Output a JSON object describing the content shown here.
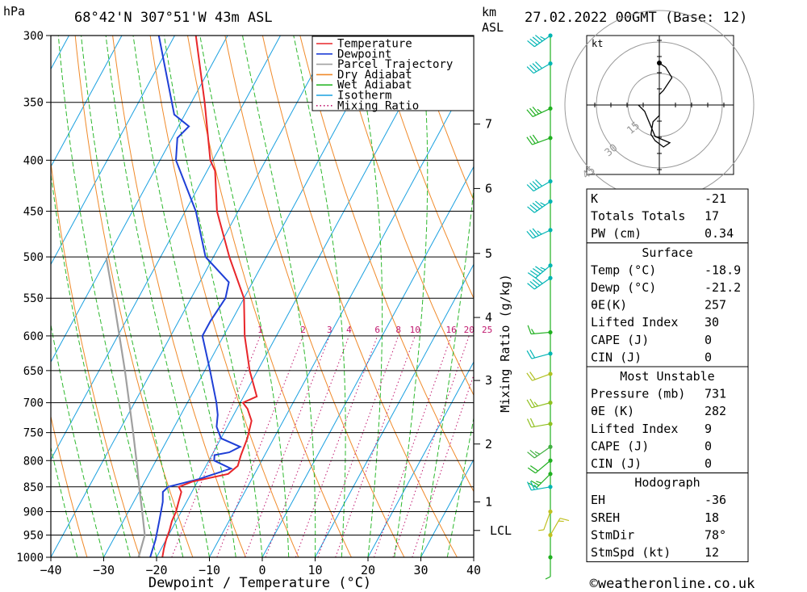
{
  "header": {
    "pressure_unit": "hPa",
    "location": "68°42'N  307°51'W  43m  ASL",
    "km_label": "km",
    "asl_label": "ASL",
    "datetime": "27.02.2022  00GMT  (Base: 12)"
  },
  "legend": [
    {
      "name": "Temperature",
      "color": "#e8262a",
      "style": "solid"
    },
    {
      "name": "Dewpoint",
      "color": "#1f3fd6",
      "style": "solid"
    },
    {
      "name": "Parcel Trajectory",
      "color": "#a0a0a0",
      "style": "solid"
    },
    {
      "name": "Dry Adiabat",
      "color": "#f08a2a",
      "style": "solid"
    },
    {
      "name": "Wet Adiabat",
      "color": "#2db82d",
      "style": "solid"
    },
    {
      "name": "Isotherm",
      "color": "#1aa0e0",
      "style": "solid"
    },
    {
      "name": "Mixing Ratio",
      "color": "#c0186e",
      "style": "dotted"
    }
  ],
  "chart_data": {
    "type": "skew-t",
    "xlabel": "Dewpoint / Temperature (°C)",
    "mixing_ratio_label": "Mixing Ratio (g/kg)",
    "pressure_levels": [
      300,
      350,
      400,
      450,
      500,
      550,
      600,
      650,
      700,
      750,
      800,
      850,
      900,
      950,
      1000
    ],
    "temperature_ticks": [
      -40,
      -30,
      -20,
      -10,
      0,
      10,
      20,
      30,
      40
    ],
    "km_ticks": [
      {
        "label": "7",
        "p": 368
      },
      {
        "label": "6",
        "p": 427
      },
      {
        "label": "5",
        "p": 496
      },
      {
        "label": "4",
        "p": 575
      },
      {
        "label": "3",
        "p": 665
      },
      {
        "label": "2",
        "p": 770
      },
      {
        "label": "1",
        "p": 880
      },
      {
        "label": "LCL",
        "p": 940
      }
    ],
    "mixing_ratio_values": [
      "1",
      "2",
      "3",
      "4",
      "6",
      "8",
      "10",
      "16",
      "20",
      "25"
    ],
    "temperature": [
      {
        "p": 1000,
        "t": -18.9
      },
      {
        "p": 980,
        "t": -19.5
      },
      {
        "p": 960,
        "t": -20
      },
      {
        "p": 940,
        "t": -20.3
      },
      {
        "p": 920,
        "t": -20.8
      },
      {
        "p": 900,
        "t": -21
      },
      {
        "p": 880,
        "t": -21.5
      },
      {
        "p": 860,
        "t": -22
      },
      {
        "p": 850,
        "t": -23
      },
      {
        "p": 840,
        "t": -21
      },
      {
        "p": 825,
        "t": -15
      },
      {
        "p": 810,
        "t": -14
      },
      {
        "p": 790,
        "t": -14.5
      },
      {
        "p": 760,
        "t": -15
      },
      {
        "p": 730,
        "t": -16
      },
      {
        "p": 710,
        "t": -18
      },
      {
        "p": 700,
        "t": -19.5
      },
      {
        "p": 690,
        "t": -17.5
      },
      {
        "p": 650,
        "t": -21.5
      },
      {
        "p": 600,
        "t": -26
      },
      {
        "p": 550,
        "t": -30
      },
      {
        "p": 500,
        "t": -37
      },
      {
        "p": 450,
        "t": -44
      },
      {
        "p": 410,
        "t": -48.5
      },
      {
        "p": 400,
        "t": -50.5
      },
      {
        "p": 350,
        "t": -57.5
      },
      {
        "p": 300,
        "t": -66
      }
    ],
    "dewpoint": [
      {
        "p": 1000,
        "t": -21.2
      },
      {
        "p": 960,
        "t": -22
      },
      {
        "p": 920,
        "t": -23.2
      },
      {
        "p": 880,
        "t": -24.5
      },
      {
        "p": 860,
        "t": -25.5
      },
      {
        "p": 850,
        "t": -25
      },
      {
        "p": 835,
        "t": -20
      },
      {
        "p": 815,
        "t": -15
      },
      {
        "p": 800,
        "t": -19
      },
      {
        "p": 790,
        "t": -19.5
      },
      {
        "p": 785,
        "t": -17
      },
      {
        "p": 775,
        "t": -15.5
      },
      {
        "p": 760,
        "t": -20
      },
      {
        "p": 740,
        "t": -22
      },
      {
        "p": 720,
        "t": -23
      },
      {
        "p": 700,
        "t": -24.5
      },
      {
        "p": 650,
        "t": -29
      },
      {
        "p": 600,
        "t": -34
      },
      {
        "p": 580,
        "t": -34
      },
      {
        "p": 550,
        "t": -33.5
      },
      {
        "p": 530,
        "t": -34.5
      },
      {
        "p": 500,
        "t": -41.5
      },
      {
        "p": 450,
        "t": -48
      },
      {
        "p": 400,
        "t": -57
      },
      {
        "p": 380,
        "t": -59
      },
      {
        "p": 370,
        "t": -58
      },
      {
        "p": 360,
        "t": -62
      },
      {
        "p": 300,
        "t": -73
      }
    ],
    "parcel": [
      {
        "p": 1000,
        "t": -23.4
      },
      {
        "p": 950,
        "t": -24.5
      },
      {
        "p": 900,
        "t": -27.4
      },
      {
        "p": 850,
        "t": -30.5
      },
      {
        "p": 800,
        "t": -33.7
      },
      {
        "p": 750,
        "t": -37.2
      },
      {
        "p": 700,
        "t": -41
      },
      {
        "p": 650,
        "t": -45.1
      },
      {
        "p": 600,
        "t": -49.7
      },
      {
        "p": 550,
        "t": -54.7
      },
      {
        "p": 500,
        "t": -60.3
      }
    ],
    "wind_profile": [
      {
        "p": 300,
        "dir": 235,
        "spd": 45,
        "color": "#00b4b4"
      },
      {
        "p": 320,
        "dir": 240,
        "spd": 40,
        "color": "#00b4b4"
      },
      {
        "p": 355,
        "dir": 245,
        "spd": 35,
        "color": "#20b020"
      },
      {
        "p": 380,
        "dir": 250,
        "spd": 30,
        "color": "#20b020"
      },
      {
        "p": 420,
        "dir": 240,
        "spd": 40,
        "color": "#00b4b4"
      },
      {
        "p": 440,
        "dir": 235,
        "spd": 45,
        "color": "#00b4b4"
      },
      {
        "p": 470,
        "dir": 245,
        "spd": 35,
        "color": "#00b4b4"
      },
      {
        "p": 510,
        "dir": 230,
        "spd": 45,
        "color": "#00b4b4"
      },
      {
        "p": 525,
        "dir": 235,
        "spd": 40,
        "color": "#00b4b4"
      },
      {
        "p": 595,
        "dir": 265,
        "spd": 15,
        "color": "#20b020"
      },
      {
        "p": 625,
        "dir": 255,
        "spd": 20,
        "color": "#00b4b4"
      },
      {
        "p": 655,
        "dir": 250,
        "spd": 20,
        "color": "#b0c020"
      },
      {
        "p": 700,
        "dir": 255,
        "spd": 25,
        "color": "#90c020"
      },
      {
        "p": 735,
        "dir": 260,
        "spd": 20,
        "color": "#90c020"
      },
      {
        "p": 775,
        "dir": 235,
        "spd": 25,
        "color": "#40b040"
      },
      {
        "p": 800,
        "dir": 230,
        "spd": 20,
        "color": "#20b020"
      },
      {
        "p": 825,
        "dir": 225,
        "spd": 25,
        "color": "#20b020"
      },
      {
        "p": 850,
        "dir": 260,
        "spd": 25,
        "color": "#00b4b4"
      },
      {
        "p": 900,
        "dir": 200,
        "spd": 5,
        "color": "#c0c020"
      },
      {
        "p": 950,
        "dir": 30,
        "spd": 15,
        "color": "#c0c020"
      },
      {
        "p": 1000,
        "dir": 180,
        "spd": 5,
        "color": "#20b020"
      }
    ]
  },
  "hodograph": {
    "unit_label": "kt",
    "ring_labels": [
      "15",
      "30",
      "45"
    ],
    "trace": [
      [
        0,
        20
      ],
      [
        3,
        18
      ],
      [
        6,
        13
      ],
      [
        2,
        7
      ],
      [
        0,
        5
      ],
      [
        0,
        -5
      ],
      [
        -3,
        -8
      ],
      [
        -4,
        -14
      ],
      [
        -2,
        -17
      ],
      [
        2,
        -20
      ],
      [
        5,
        -18
      ],
      [
        -2,
        -15
      ],
      [
        -7,
        -3
      ],
      [
        -10,
        0
      ]
    ]
  },
  "indices": {
    "general": [
      {
        "label": "K",
        "value": "-21"
      },
      {
        "label": "Totals Totals",
        "value": "17"
      },
      {
        "label": "PW (cm)",
        "value": "0.34"
      }
    ],
    "surface_title": "Surface",
    "surface": [
      {
        "label": "Temp (°C)",
        "value": "-18.9"
      },
      {
        "label": "Dewp (°C)",
        "value": "-21.2"
      },
      {
        "label": "θE(K)",
        "value": "257"
      },
      {
        "label": "Lifted Index",
        "value": "30"
      },
      {
        "label": "CAPE (J)",
        "value": "0"
      },
      {
        "label": "CIN (J)",
        "value": "0"
      }
    ],
    "mu_title": "Most Unstable",
    "mu": [
      {
        "label": "Pressure (mb)",
        "value": "731"
      },
      {
        "label": "θE (K)",
        "value": "282"
      },
      {
        "label": "Lifted Index",
        "value": "9"
      },
      {
        "label": "CAPE (J)",
        "value": "0"
      },
      {
        "label": "CIN (J)",
        "value": "0"
      }
    ],
    "hodo_title": "Hodograph",
    "hodo": [
      {
        "label": "EH",
        "value": "-36"
      },
      {
        "label": "SREH",
        "value": "18"
      },
      {
        "label": "StmDir",
        "value": "78°"
      },
      {
        "label": "StmSpd (kt)",
        "value": "12"
      }
    ]
  },
  "footer": {
    "copyright": "©weatheronline.co.uk"
  }
}
